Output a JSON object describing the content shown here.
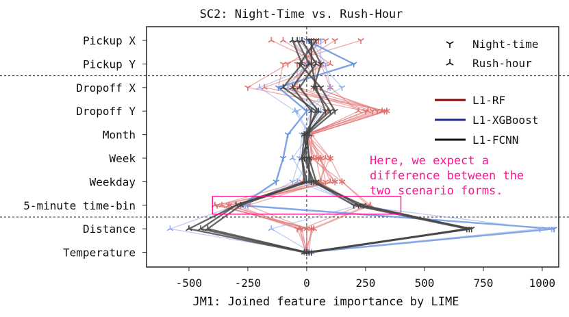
{
  "chart_data": {
    "type": "line",
    "title": "SC2: Night-Time vs. Rush-Hour",
    "xlabel": "JM1: Joined feature importance by LIME",
    "ylabel": "",
    "xlim": [
      -680,
      1070
    ],
    "xticks": [
      -500,
      -250,
      0,
      250,
      500,
      750,
      1000
    ],
    "xtick_labels": [
      "-500",
      "-250",
      "0",
      "250",
      "500",
      "750",
      "1000"
    ],
    "categories": [
      "Pickup X",
      "Pickup Y",
      "Dropoff X",
      "Dropoff Y",
      "Month",
      "Week",
      "Weekday",
      "5-minute time-bin",
      "Distance",
      "Temperature"
    ],
    "group_separators_after": [
      "Pickup Y",
      "5-minute time-bin"
    ],
    "grid": false,
    "legend_markers": [
      {
        "label": "Night-time",
        "marker": "tri_down"
      },
      {
        "label": "Rush-hour",
        "marker": "tri_up"
      }
    ],
    "legend_models": [
      {
        "label": "L1-RF",
        "color": "#8b0000"
      },
      {
        "label": "L1-XGBoost",
        "color": "#1c2a8c"
      },
      {
        "label": "L1-FCNN",
        "color": "#111111"
      }
    ],
    "series": [
      {
        "model": "RF",
        "color": "#e0706e",
        "values": [
          30,
          -5,
          -60,
          280,
          10,
          20,
          -20,
          -380,
          0,
          0
        ]
      },
      {
        "model": "RF",
        "color": "#e0706e",
        "values": [
          -20,
          40,
          30,
          320,
          -10,
          40,
          60,
          -300,
          -30,
          -5
        ]
      },
      {
        "model": "RF",
        "color": "#e0706e",
        "values": [
          230,
          -100,
          -120,
          340,
          10,
          50,
          120,
          -330,
          -40,
          0
        ]
      },
      {
        "model": "RF",
        "color": "#e0706e",
        "values": [
          -150,
          60,
          -60,
          90,
          0,
          30,
          120,
          -390,
          20,
          10
        ]
      },
      {
        "model": "RF",
        "color": "#e0706e",
        "values": [
          50,
          0,
          40,
          300,
          -10,
          60,
          80,
          -250,
          0,
          0
        ]
      },
      {
        "model": "RF",
        "color": "#e0706e",
        "values": [
          -40,
          100,
          -180,
          340,
          20,
          100,
          150,
          270,
          30,
          -10
        ]
      },
      {
        "model": "RF",
        "color": "#e0706e",
        "values": [
          80,
          -80,
          -250,
          250,
          0,
          100,
          50,
          230,
          -20,
          0
        ]
      },
      {
        "model": "RF",
        "color": "#e0706e",
        "values": [
          -100,
          60,
          100,
          220,
          10,
          60,
          100,
          -330,
          0,
          0
        ]
      },
      {
        "model": "RF",
        "color": "#e0706e",
        "values": [
          120,
          -40,
          -40,
          330,
          20,
          20,
          150,
          260,
          20,
          0
        ]
      },
      {
        "model": "RF",
        "color": "#e0706e",
        "values": [
          -60,
          20,
          -100,
          260,
          -10,
          80,
          60,
          -360,
          -30,
          5
        ]
      },
      {
        "model": "XGBoost",
        "color": "#5b8de0",
        "values": [
          0,
          200,
          -120,
          0,
          -80,
          -100,
          -130,
          -280,
          1050,
          0
        ]
      },
      {
        "model": "XGBoost",
        "color": "#8eaaea",
        "values": [
          -30,
          40,
          -200,
          -50,
          10,
          -60,
          0,
          -300,
          -580,
          10
        ]
      },
      {
        "model": "XGBoost",
        "color": "#8eaaea",
        "values": [
          20,
          80,
          100,
          20,
          -20,
          -30,
          -60,
          -260,
          1040,
          0
        ]
      },
      {
        "model": "XGBoost",
        "color": "#8eaaea",
        "values": [
          -60,
          0,
          -80,
          60,
          0,
          10,
          -40,
          220,
          -150,
          20
        ]
      },
      {
        "model": "XGBoost",
        "color": "#8eaaea",
        "values": [
          60,
          60,
          150,
          -40,
          10,
          -20,
          0,
          200,
          990,
          -10
        ]
      },
      {
        "model": "FCNN",
        "color": "#444444",
        "values": [
          -20,
          40,
          -30,
          50,
          -10,
          -20,
          -10,
          -300,
          -450,
          0
        ]
      },
      {
        "model": "FCNN",
        "color": "#444444",
        "values": [
          40,
          -30,
          60,
          120,
          0,
          10,
          40,
          220,
          700,
          20
        ]
      },
      {
        "model": "FCNN",
        "color": "#444444",
        "values": [
          -40,
          10,
          -60,
          20,
          10,
          -20,
          0,
          -280,
          -420,
          0
        ]
      },
      {
        "model": "FCNN",
        "color": "#444444",
        "values": [
          10,
          60,
          30,
          100,
          -10,
          0,
          20,
          240,
          690,
          0
        ]
      },
      {
        "model": "FCNN",
        "color": "#444444",
        "values": [
          -60,
          -20,
          -100,
          40,
          0,
          10,
          10,
          -300,
          -500,
          -10
        ]
      },
      {
        "model": "FCNN",
        "color": "#444444",
        "values": [
          20,
          20,
          40,
          80,
          0,
          -10,
          30,
          200,
          680,
          10
        ]
      }
    ],
    "annotation": {
      "text": [
        "Here, we expect a",
        "difference between the",
        "two scenario forms."
      ],
      "color": "#ff1493",
      "box_range": {
        "category": "5-minute time-bin",
        "x": [
          -400,
          400
        ]
      }
    }
  }
}
